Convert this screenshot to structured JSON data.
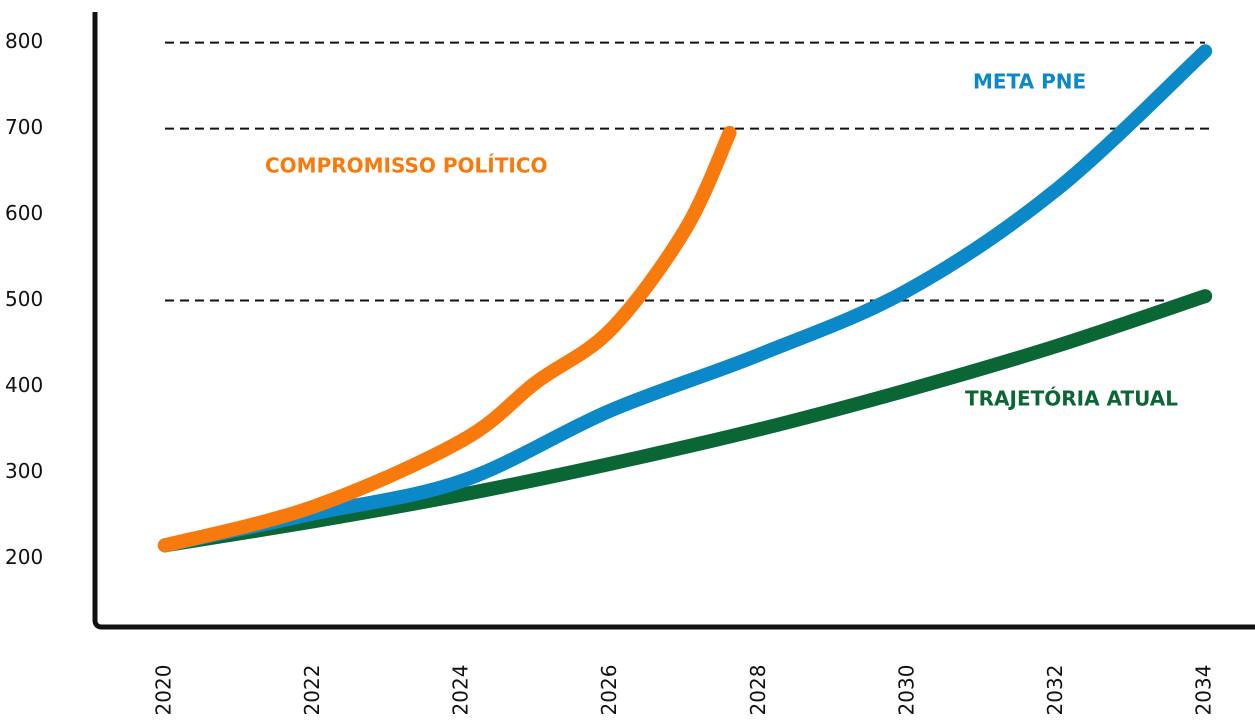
{
  "chart_data": {
    "type": "line",
    "xlim": [
      2019.06,
      2034.67
    ],
    "ylim": [
      120,
      838
    ],
    "xticks": [
      2020,
      2022,
      2024,
      2026,
      2028,
      2030,
      2032,
      2034
    ],
    "yticks": [
      200,
      300,
      400,
      500,
      600,
      700,
      800
    ],
    "dashed_lines": [
      500,
      700,
      800
    ],
    "series": [
      {
        "name": "TRAJETÓRIA ATUAL",
        "color": "#0a6634",
        "x": [
          2020,
          2022,
          2024,
          2026,
          2028,
          2030,
          2032,
          2034
        ],
        "values": [
          215,
          243,
          274,
          310,
          350,
          396,
          447,
          505
        ]
      },
      {
        "name": "META PNE",
        "color": "#0b88c8",
        "x": [
          2020,
          2022,
          2024,
          2026,
          2028,
          2030,
          2032,
          2034
        ],
        "values": [
          215,
          252,
          290,
          372,
          437,
          512,
          629,
          790
        ]
      },
      {
        "name": "COMPROMISSO POLÍTICO",
        "color": "#f97a0c",
        "x": [
          2020,
          2022,
          2024,
          2025,
          2026,
          2027,
          2027.6
        ],
        "values": [
          215,
          260,
          337,
          405,
          466,
          582,
          695
        ]
      }
    ]
  }
}
